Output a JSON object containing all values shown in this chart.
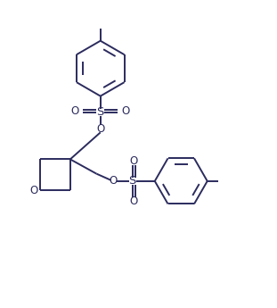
{
  "bg_color": "#ffffff",
  "line_color": "#2b2b5e",
  "line_width": 1.4,
  "font_size": 8.5,
  "figsize": [
    3.11,
    3.45
  ],
  "dpi": 100,
  "xlim": [
    0,
    10.5
  ],
  "ylim": [
    0,
    11.5
  ]
}
